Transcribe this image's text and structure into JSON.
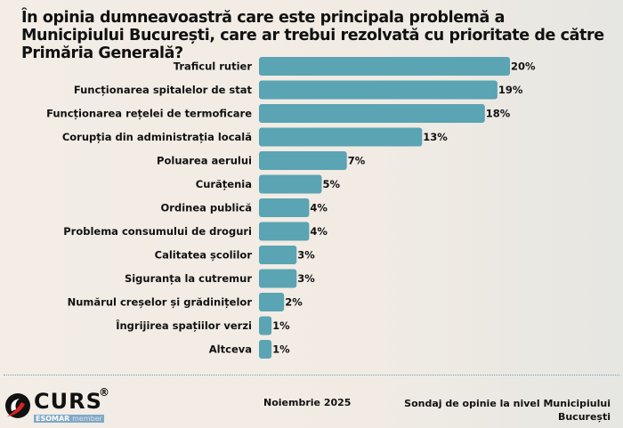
{
  "chart_data": {
    "type": "bar",
    "orientation": "horizontal",
    "title": "În opinia dumneavoastră care este principala problemă a Municipiului București, care ar trebui rezolvată cu prioritate de către Primăria Generală?",
    "categories": [
      "Traficul rutier",
      "Funcționarea spitalelor de stat",
      "Funcționarea rețelei de termoficare",
      "Corupția din administrația locală",
      "Poluarea aerului",
      "Curățenia",
      "Ordinea publică",
      "Problema consumului de droguri",
      "Calitatea școlilor",
      "Siguranța la cutremur",
      "Numărul creșelor și grădinițelor",
      "Îngrijirea spațiilor verzi",
      "Altceva"
    ],
    "values": [
      20,
      19,
      18,
      13,
      7,
      5,
      4,
      4,
      3,
      3,
      2,
      1,
      1
    ],
    "value_labels": [
      "20%",
      "19%",
      "18%",
      "13%",
      "7%",
      "5%",
      "4%",
      "4%",
      "3%",
      "3%",
      "2%",
      "1%",
      "1%"
    ],
    "bar_color": "#5aa4b3",
    "grid": false,
    "legend": "none"
  },
  "footer": {
    "date": "Noiembrie 2025",
    "source_line1": "Sondaj de opinie la nivel Municipiului",
    "source_line2": "București",
    "logo": "CURS",
    "esomar": "ESOMAR",
    "esomar_member": "member"
  }
}
